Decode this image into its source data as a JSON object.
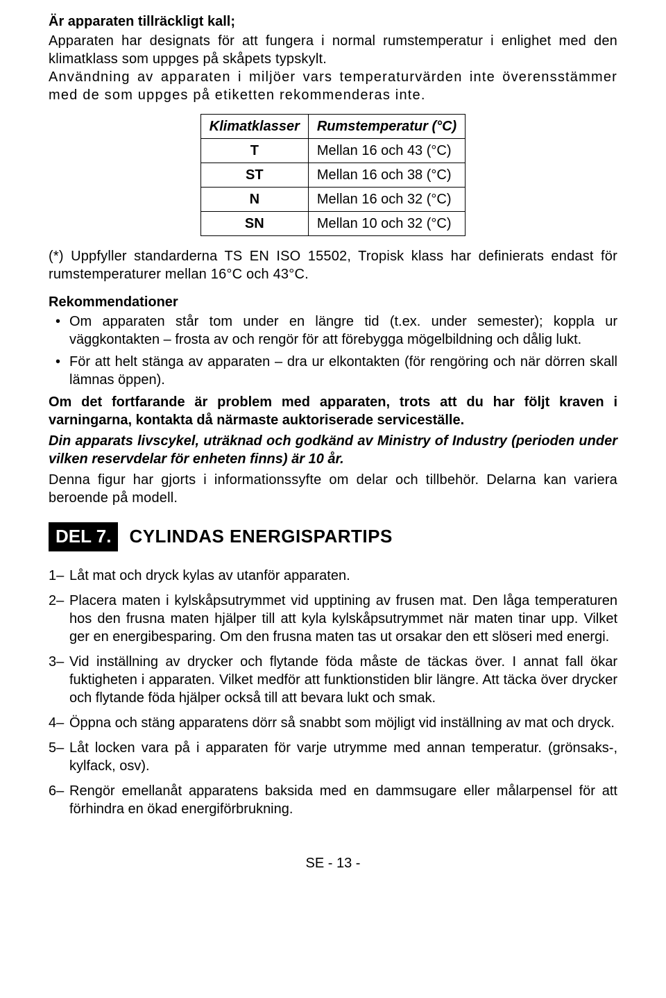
{
  "intro": {
    "title": "Är apparaten tillräckligt kall;",
    "p1": "Apparaten har designats för att fungera i normal rumstemperatur i enlighet med den klimatklass som uppges på skåpets typskylt.",
    "p2": "Användning av apparaten i miljöer vars temperaturvärden inte överensstämmer med de som uppges på etiketten rekommenderas inte."
  },
  "table": {
    "col1": "Klimatklasser",
    "col2": "Rumstemperatur (°C)",
    "rows": [
      {
        "klass": "T",
        "val": "Mellan 16 och 43 (°C)"
      },
      {
        "klass": "ST",
        "val": "Mellan 16 och 38 (°C)"
      },
      {
        "klass": "N",
        "val": "Mellan 16 och 32 (°C)"
      },
      {
        "klass": "SN",
        "val": "Mellan 10 och 32 (°C)"
      }
    ]
  },
  "footnote": "(*) Uppfyller standarderna TS EN ISO 15502, Tropisk klass har definierats endast för rumstemperaturer mellan 16°C och 43°C.",
  "rec": {
    "header": "Rekommendationer",
    "b1": "Om apparaten står tom under en längre tid (t.ex. under semester); koppla ur väggkontakten – frosta av och rengör för att förebygga mögelbildning och dålig lukt.",
    "b2": "För att helt stänga av apparaten – dra ur elkontakten (för rengöring och när dörren skall lämnas öppen)."
  },
  "after": {
    "p1": "Om det fortfarande är problem med apparaten, trots att du har följt kraven i varningarna, kontakta då närmaste auktoriserade serviceställe.",
    "p2": "Din apparats livscykel, uträknad och godkänd av Ministry of Industry (perioden under vilken reservdelar för enheten finns) är 10 år.",
    "p3": "Denna figur har gjorts i informationssyfte om delar och tillbehör. Delarna kan variera beroende på modell."
  },
  "del7": {
    "badge": "DEL 7.",
    "title": "CYLINDAS ENERGISPARTIPS",
    "items": [
      {
        "n": "1–",
        "t": "Låt mat och dryck kylas av utanför apparaten."
      },
      {
        "n": "2–",
        "t": "Placera maten i kylskåpsutrymmet vid upptining av frusen mat. Den låga temperaturen hos den frusna maten hjälper till att kyla kylskåpsutrymmet när maten tinar upp. Vilket ger en energibesparing. Om den frusna maten tas ut orsakar den ett slöseri med energi."
      },
      {
        "n": "3–",
        "t": "Vid inställning av drycker och flytande föda måste de täckas över. I annat fall ökar fuktigheten i apparaten. Vilket medför att funktionstiden blir längre. Att täcka över drycker och flytande föda hjälper också till att bevara lukt och smak."
      },
      {
        "n": "4–",
        "t": "Öppna och stäng apparatens dörr så snabbt som möjligt vid inställning av mat och dryck."
      },
      {
        "n": "5–",
        "t": "Låt locken vara på i apparaten för varje utrymme med annan temperatur. (grönsaks-, kylfack, osv)."
      },
      {
        "n": "6–",
        "t": "Rengör emellanåt apparatens baksida med en dammsugare eller målarpensel för att förhindra en ökad energiförbrukning."
      }
    ]
  },
  "footer": "SE - 13 -"
}
